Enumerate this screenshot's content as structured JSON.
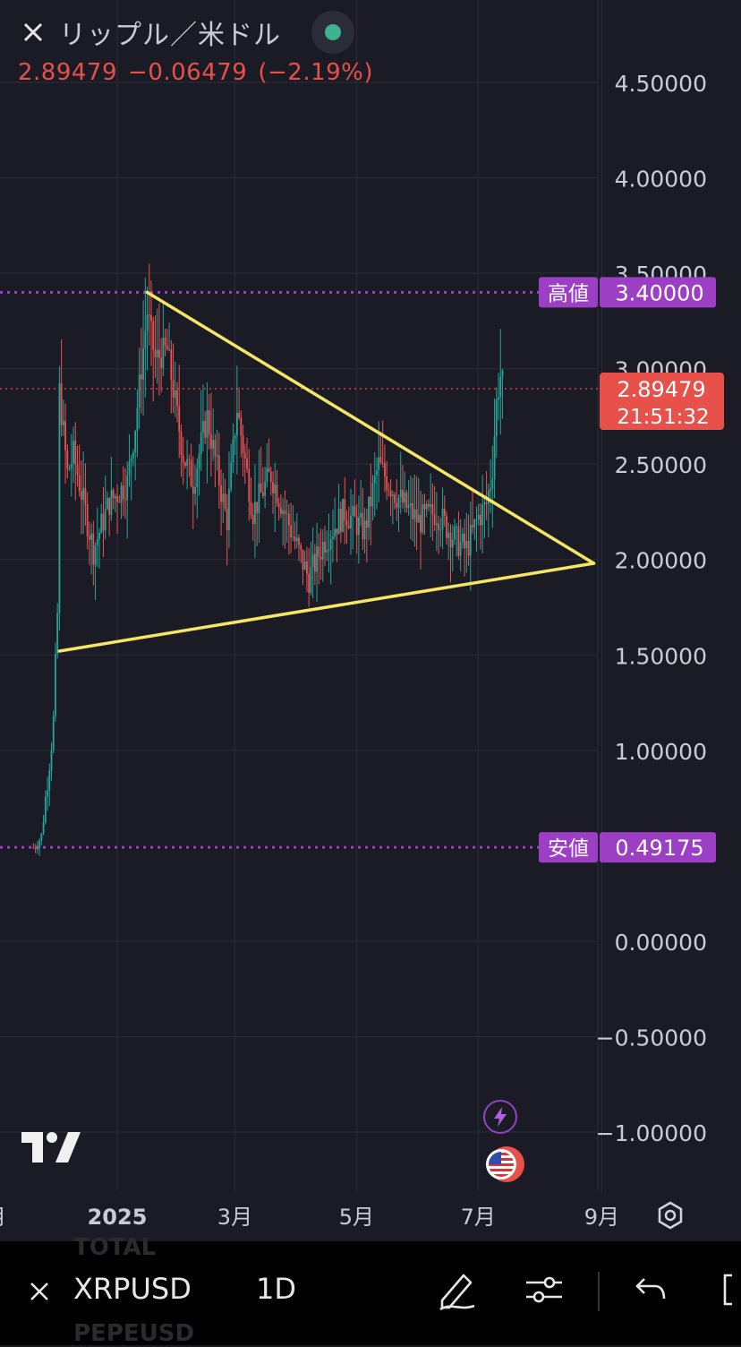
{
  "header": {
    "title": "リップル／米ドル",
    "close_icon": "close-icon",
    "status_color": "#3fb18f"
  },
  "quote": {
    "price": "2.89479",
    "change": "−0.06479",
    "change_pct": "(−2.19%)",
    "color": "#e8504a"
  },
  "chart_data": {
    "type": "candlestick",
    "symbol": "XRPUSD",
    "timeframe": "1D",
    "y_axis_labels": [
      "4.50000",
      "4.00000",
      "3.50000",
      "3.00000",
      "2.50000",
      "2.00000",
      "1.50000",
      "1.00000",
      "0.00000",
      "−0.50000",
      "−1.00000"
    ],
    "y_ticks": [
      4.5,
      4.0,
      3.5,
      3.0,
      2.5,
      2.0,
      1.5,
      1.0,
      0.0,
      -0.5,
      -1.0
    ],
    "x_axis_labels": [
      "月",
      "2025",
      "3月",
      "5月",
      "7月",
      "9月"
    ],
    "x_ticks": [
      "2024-11",
      "2025-01",
      "2025-03",
      "2025-05",
      "2025-07",
      "2025-09"
    ],
    "high": {
      "label": "高値",
      "value": "3.40000"
    },
    "low": {
      "label": "安値",
      "value": "0.49175"
    },
    "last": {
      "value": "2.89479",
      "countdown": "21:51:32"
    },
    "trendlines": [
      {
        "from": [
          "2025-01-16",
          3.4
        ],
        "to": [
          "2025-08-28",
          1.98
        ]
      },
      {
        "from": [
          "2024-12-03",
          1.52
        ],
        "to": [
          "2025-08-28",
          1.98
        ]
      }
    ],
    "colors": {
      "up": "#26a69a",
      "down": "#ef5350",
      "trendline": "#f5e663",
      "marker": "#9c3fc4",
      "last": "#e8504a"
    }
  },
  "toolbar": {
    "symbol": "XRPUSD",
    "timeframe": "1D",
    "ghost_above": "TOTAL",
    "ghost_below": "PEPEUSD",
    "icons": [
      "close-icon",
      "pencil-icon",
      "sliders-icon",
      "undo-icon",
      "fullscreen-icon"
    ]
  }
}
